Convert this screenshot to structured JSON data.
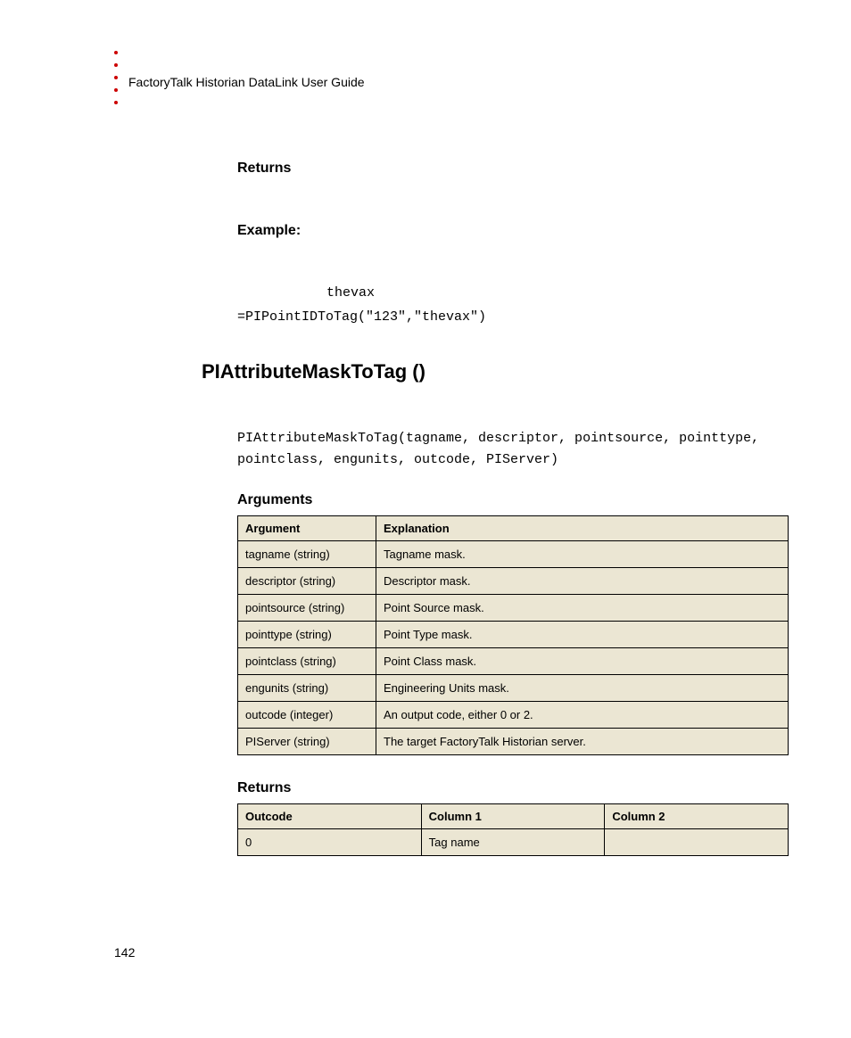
{
  "colors": {
    "bullet": "#cc0000",
    "table_bg": "#ebe6d3",
    "text": "#000000",
    "page_bg": "#ffffff",
    "border": "#000000"
  },
  "typography": {
    "body_family": "Verdana, Geneva, sans-serif",
    "mono_family": "Courier New, Courier, monospace",
    "header_fontsize": 14,
    "section_heading_fontsize": 16,
    "func_title_fontsize": 22,
    "mono_fontsize": 15,
    "table_fontsize": 13,
    "pagenum_fontsize": 14
  },
  "header": {
    "title": "FactoryTalk Historian DataLink User Guide",
    "bullet_count": 5
  },
  "sections": {
    "returns": "Returns",
    "example": "Example:",
    "arguments": "Arguments",
    "returns2": "Returns"
  },
  "example": {
    "thevax": "thevax",
    "code": "=PIPointIDToTag(\"123\",\"thevax\")"
  },
  "func": {
    "title": "PIAttributeMaskToTag ()",
    "syntax": "PIAttributeMaskToTag(tagname, descriptor, pointsource, pointtype, pointclass, engunits, outcode, PIServer)"
  },
  "args_table": {
    "headers": [
      "Argument",
      "Explanation"
    ],
    "rows": [
      [
        "tagname (string)",
        "Tagname mask."
      ],
      [
        "descriptor (string)",
        "Descriptor mask."
      ],
      [
        "pointsource (string)",
        "Point Source mask."
      ],
      [
        "pointtype (string)",
        "Point Type mask."
      ],
      [
        "pointclass (string)",
        "Point Class mask."
      ],
      [
        "engunits (string)",
        "Engineering Units mask."
      ],
      [
        "outcode (integer)",
        "An output code, either 0 or 2."
      ],
      [
        "PIServer (string)",
        "The target FactoryTalk Historian server."
      ]
    ]
  },
  "returns_table": {
    "headers": [
      "Outcode",
      "Column 1",
      "Column 2"
    ],
    "rows": [
      [
        "0",
        "Tag name",
        ""
      ]
    ]
  },
  "page_number": "142"
}
